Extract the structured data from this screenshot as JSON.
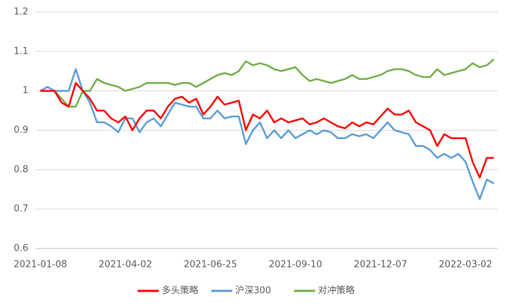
{
  "chart_data": {
    "type": "line",
    "categories": [
      "2021-01-08",
      null,
      null,
      null,
      null,
      null,
      null,
      null,
      null,
      null,
      null,
      null,
      "2021-04-02",
      null,
      null,
      null,
      null,
      null,
      null,
      null,
      null,
      null,
      null,
      null,
      "2021-06-25",
      null,
      null,
      null,
      null,
      null,
      null,
      null,
      null,
      null,
      null,
      null,
      "2021-09-10",
      null,
      null,
      null,
      null,
      null,
      null,
      null,
      null,
      null,
      null,
      null,
      "2021-12-07",
      null,
      null,
      null,
      null,
      null,
      null,
      null,
      null,
      null,
      null,
      null,
      "2022-03-02",
      null,
      null,
      null,
      null
    ],
    "series": [
      {
        "name": "多头策略",
        "color": "#ff0000",
        "values": [
          1.0,
          1.0,
          1.0,
          0.97,
          0.96,
          1.02,
          1.0,
          0.98,
          0.95,
          0.95,
          0.93,
          0.92,
          0.935,
          0.9,
          0.93,
          0.95,
          0.95,
          0.93,
          0.96,
          0.98,
          0.985,
          0.97,
          0.98,
          0.94,
          0.96,
          0.985,
          0.965,
          0.97,
          0.975,
          0.9,
          0.94,
          0.93,
          0.95,
          0.92,
          0.93,
          0.92,
          0.925,
          0.93,
          0.915,
          0.92,
          0.93,
          0.92,
          0.91,
          0.905,
          0.92,
          0.91,
          0.92,
          0.915,
          0.935,
          0.955,
          0.94,
          0.94,
          0.95,
          0.92,
          0.91,
          0.9,
          0.86,
          0.89,
          0.88,
          0.88,
          0.88,
          0.82,
          0.78,
          0.83,
          0.83
        ]
      },
      {
        "name": "沪深300",
        "color": "#5b9bd5",
        "values": [
          1.0,
          1.01,
          1.0,
          1.0,
          1.0,
          1.055,
          1.0,
          0.97,
          0.92,
          0.92,
          0.91,
          0.895,
          0.93,
          0.93,
          0.895,
          0.92,
          0.93,
          0.91,
          0.94,
          0.97,
          0.965,
          0.96,
          0.96,
          0.93,
          0.93,
          0.95,
          0.93,
          0.935,
          0.935,
          0.865,
          0.9,
          0.92,
          0.88,
          0.9,
          0.88,
          0.9,
          0.88,
          0.89,
          0.9,
          0.89,
          0.9,
          0.895,
          0.88,
          0.88,
          0.89,
          0.885,
          0.89,
          0.88,
          0.9,
          0.92,
          0.9,
          0.895,
          0.89,
          0.86,
          0.86,
          0.85,
          0.83,
          0.84,
          0.83,
          0.84,
          0.82,
          0.77,
          0.725,
          0.775,
          0.765
        ]
      },
      {
        "name": "对冲策略",
        "color": "#70ad47",
        "values": [
          1.0,
          1.0,
          1.0,
          0.98,
          0.96,
          0.96,
          1.0,
          1.0,
          1.03,
          1.02,
          1.015,
          1.01,
          1.0,
          1.005,
          1.01,
          1.02,
          1.02,
          1.02,
          1.02,
          1.015,
          1.02,
          1.02,
          1.01,
          1.02,
          1.03,
          1.04,
          1.045,
          1.04,
          1.05,
          1.075,
          1.065,
          1.07,
          1.065,
          1.055,
          1.05,
          1.055,
          1.06,
          1.04,
          1.025,
          1.03,
          1.025,
          1.02,
          1.025,
          1.03,
          1.04,
          1.03,
          1.03,
          1.035,
          1.04,
          1.05,
          1.055,
          1.055,
          1.05,
          1.04,
          1.035,
          1.035,
          1.055,
          1.04,
          1.045,
          1.05,
          1.055,
          1.07,
          1.06,
          1.065,
          1.08
        ]
      }
    ],
    "ylim": [
      0.6,
      1.2
    ],
    "yticks": [
      0.6,
      0.7,
      0.8,
      0.9,
      1,
      1.1,
      1.2
    ],
    "grid": true,
    "legend": "bottom"
  }
}
